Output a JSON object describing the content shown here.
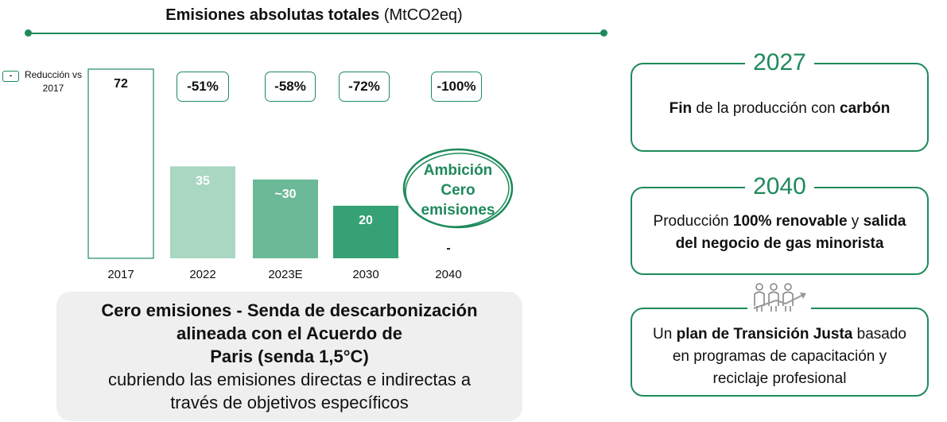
{
  "header": {
    "title_bold": "Emisiones absolutas totales",
    "title_unit": "(MtCO2eq)"
  },
  "legend": {
    "marker": "-",
    "label": "Reducción vs 2017"
  },
  "chart_data": {
    "type": "bar",
    "title": "Emisiones absolutas totales (MtCO2eq)",
    "categories": [
      "2017",
      "2022",
      "2023E",
      "2030",
      "2040"
    ],
    "values": [
      72,
      35,
      30,
      20,
      0
    ],
    "value_labels": [
      "72",
      "35",
      "~30",
      "20",
      "-"
    ],
    "reductions": [
      "",
      "-51%",
      "-58%",
      "-72%",
      "-100%"
    ],
    "colors": [
      "#ffffff",
      "#a9d7c1",
      "#6cb997",
      "#35a174",
      "#ffffff"
    ],
    "accent": "#1e8a5a",
    "annotation": "Ambición Cero emisiones",
    "ylim": [
      0,
      72
    ],
    "grid": false
  },
  "summary": {
    "line1": "Cero emisiones - Senda de descarbonización",
    "line2": "alineada con el Acuerdo de",
    "line3": "Paris (senda 1,5°C)",
    "line4": "cubriendo las emisiones directas e indirectas a",
    "line5": "través de objetivos específicos"
  },
  "cards": {
    "c1": {
      "year": "2027",
      "t1": "Fin",
      "t2": " de la producción con ",
      "t3": "carbón"
    },
    "c2": {
      "year": "2040",
      "t1": "Producción ",
      "t2": "100% renovable",
      "t3": " y ",
      "t4": "salida",
      "t5": "del negocio de gas minorista"
    },
    "c3": {
      "icon": "people-growth-icon",
      "t1": "Un ",
      "t2": "plan de Transición Justa",
      "t3": " basado",
      "t4": "en programas de capacitación y",
      "t5": "reciclaje profesional"
    }
  }
}
